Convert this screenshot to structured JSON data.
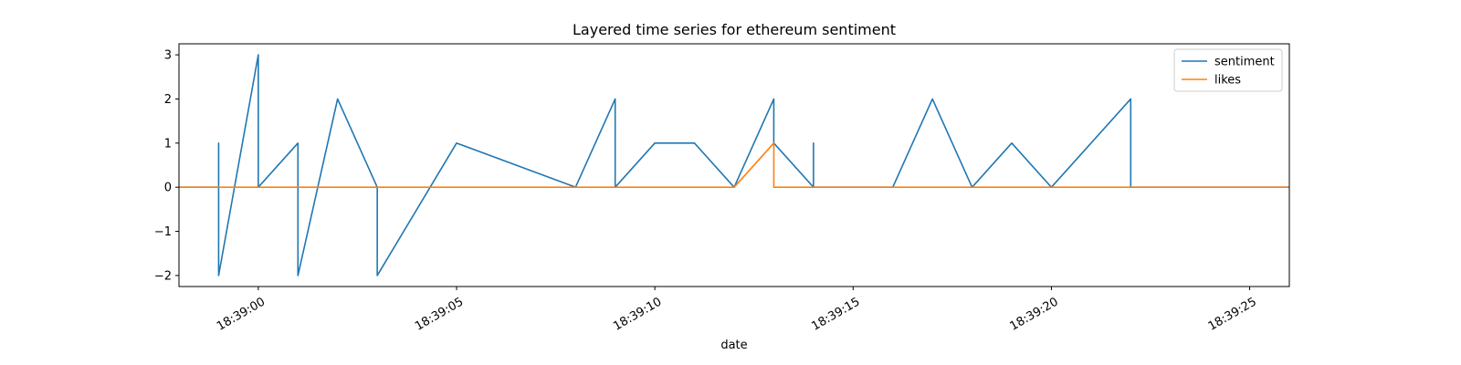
{
  "chart_data": {
    "type": "line",
    "title": "Layered time series for ethereum sentiment",
    "xlabel": "date",
    "ylabel": "",
    "x_time_range": [
      "18:38:58",
      "18:39:26"
    ],
    "ylim": [
      -2.25,
      3.25
    ],
    "y_ticks": [
      -2,
      -1,
      0,
      1,
      2,
      3
    ],
    "y_tick_labels": [
      "−2",
      "−1",
      "0",
      "1",
      "2",
      "3"
    ],
    "x_ticks": [
      "18:39:00",
      "18:39:05",
      "18:39:10",
      "18:39:15",
      "18:39:20",
      "18:39:25"
    ],
    "grid": false,
    "legend_position": "top-right",
    "series": [
      {
        "name": "sentiment",
        "color": "#1f77b4",
        "points": [
          [
            "18:38:58",
            0
          ],
          [
            "18:38:59",
            0
          ],
          [
            "18:38:59",
            1
          ],
          [
            "18:38:59",
            -2
          ],
          [
            "18:39:00",
            3
          ],
          [
            "18:39:00",
            0
          ],
          [
            "18:39:01",
            1
          ],
          [
            "18:39:01",
            -2
          ],
          [
            "18:39:02",
            2
          ],
          [
            "18:39:03",
            0
          ],
          [
            "18:39:03",
            -2
          ],
          [
            "18:39:05",
            1
          ],
          [
            "18:39:08",
            0
          ],
          [
            "18:39:09",
            2
          ],
          [
            "18:39:09",
            0
          ],
          [
            "18:39:10",
            1
          ],
          [
            "18:39:11",
            1
          ],
          [
            "18:39:12",
            0
          ],
          [
            "18:39:13",
            2
          ],
          [
            "18:39:13",
            1
          ],
          [
            "18:39:14",
            0
          ],
          [
            "18:39:14",
            1
          ],
          [
            "18:39:14",
            0
          ],
          [
            "18:39:16",
            0
          ],
          [
            "18:39:17",
            2
          ],
          [
            "18:39:18",
            0
          ],
          [
            "18:39:19",
            1
          ],
          [
            "18:39:20",
            0
          ],
          [
            "18:39:22",
            2
          ],
          [
            "18:39:22",
            0
          ],
          [
            "18:39:26",
            0
          ]
        ]
      },
      {
        "name": "likes",
        "color": "#ff7f0e",
        "points": [
          [
            "18:38:58",
            0
          ],
          [
            "18:39:12",
            0
          ],
          [
            "18:39:13",
            1
          ],
          [
            "18:39:13",
            0
          ],
          [
            "18:39:26",
            0
          ]
        ]
      }
    ]
  }
}
